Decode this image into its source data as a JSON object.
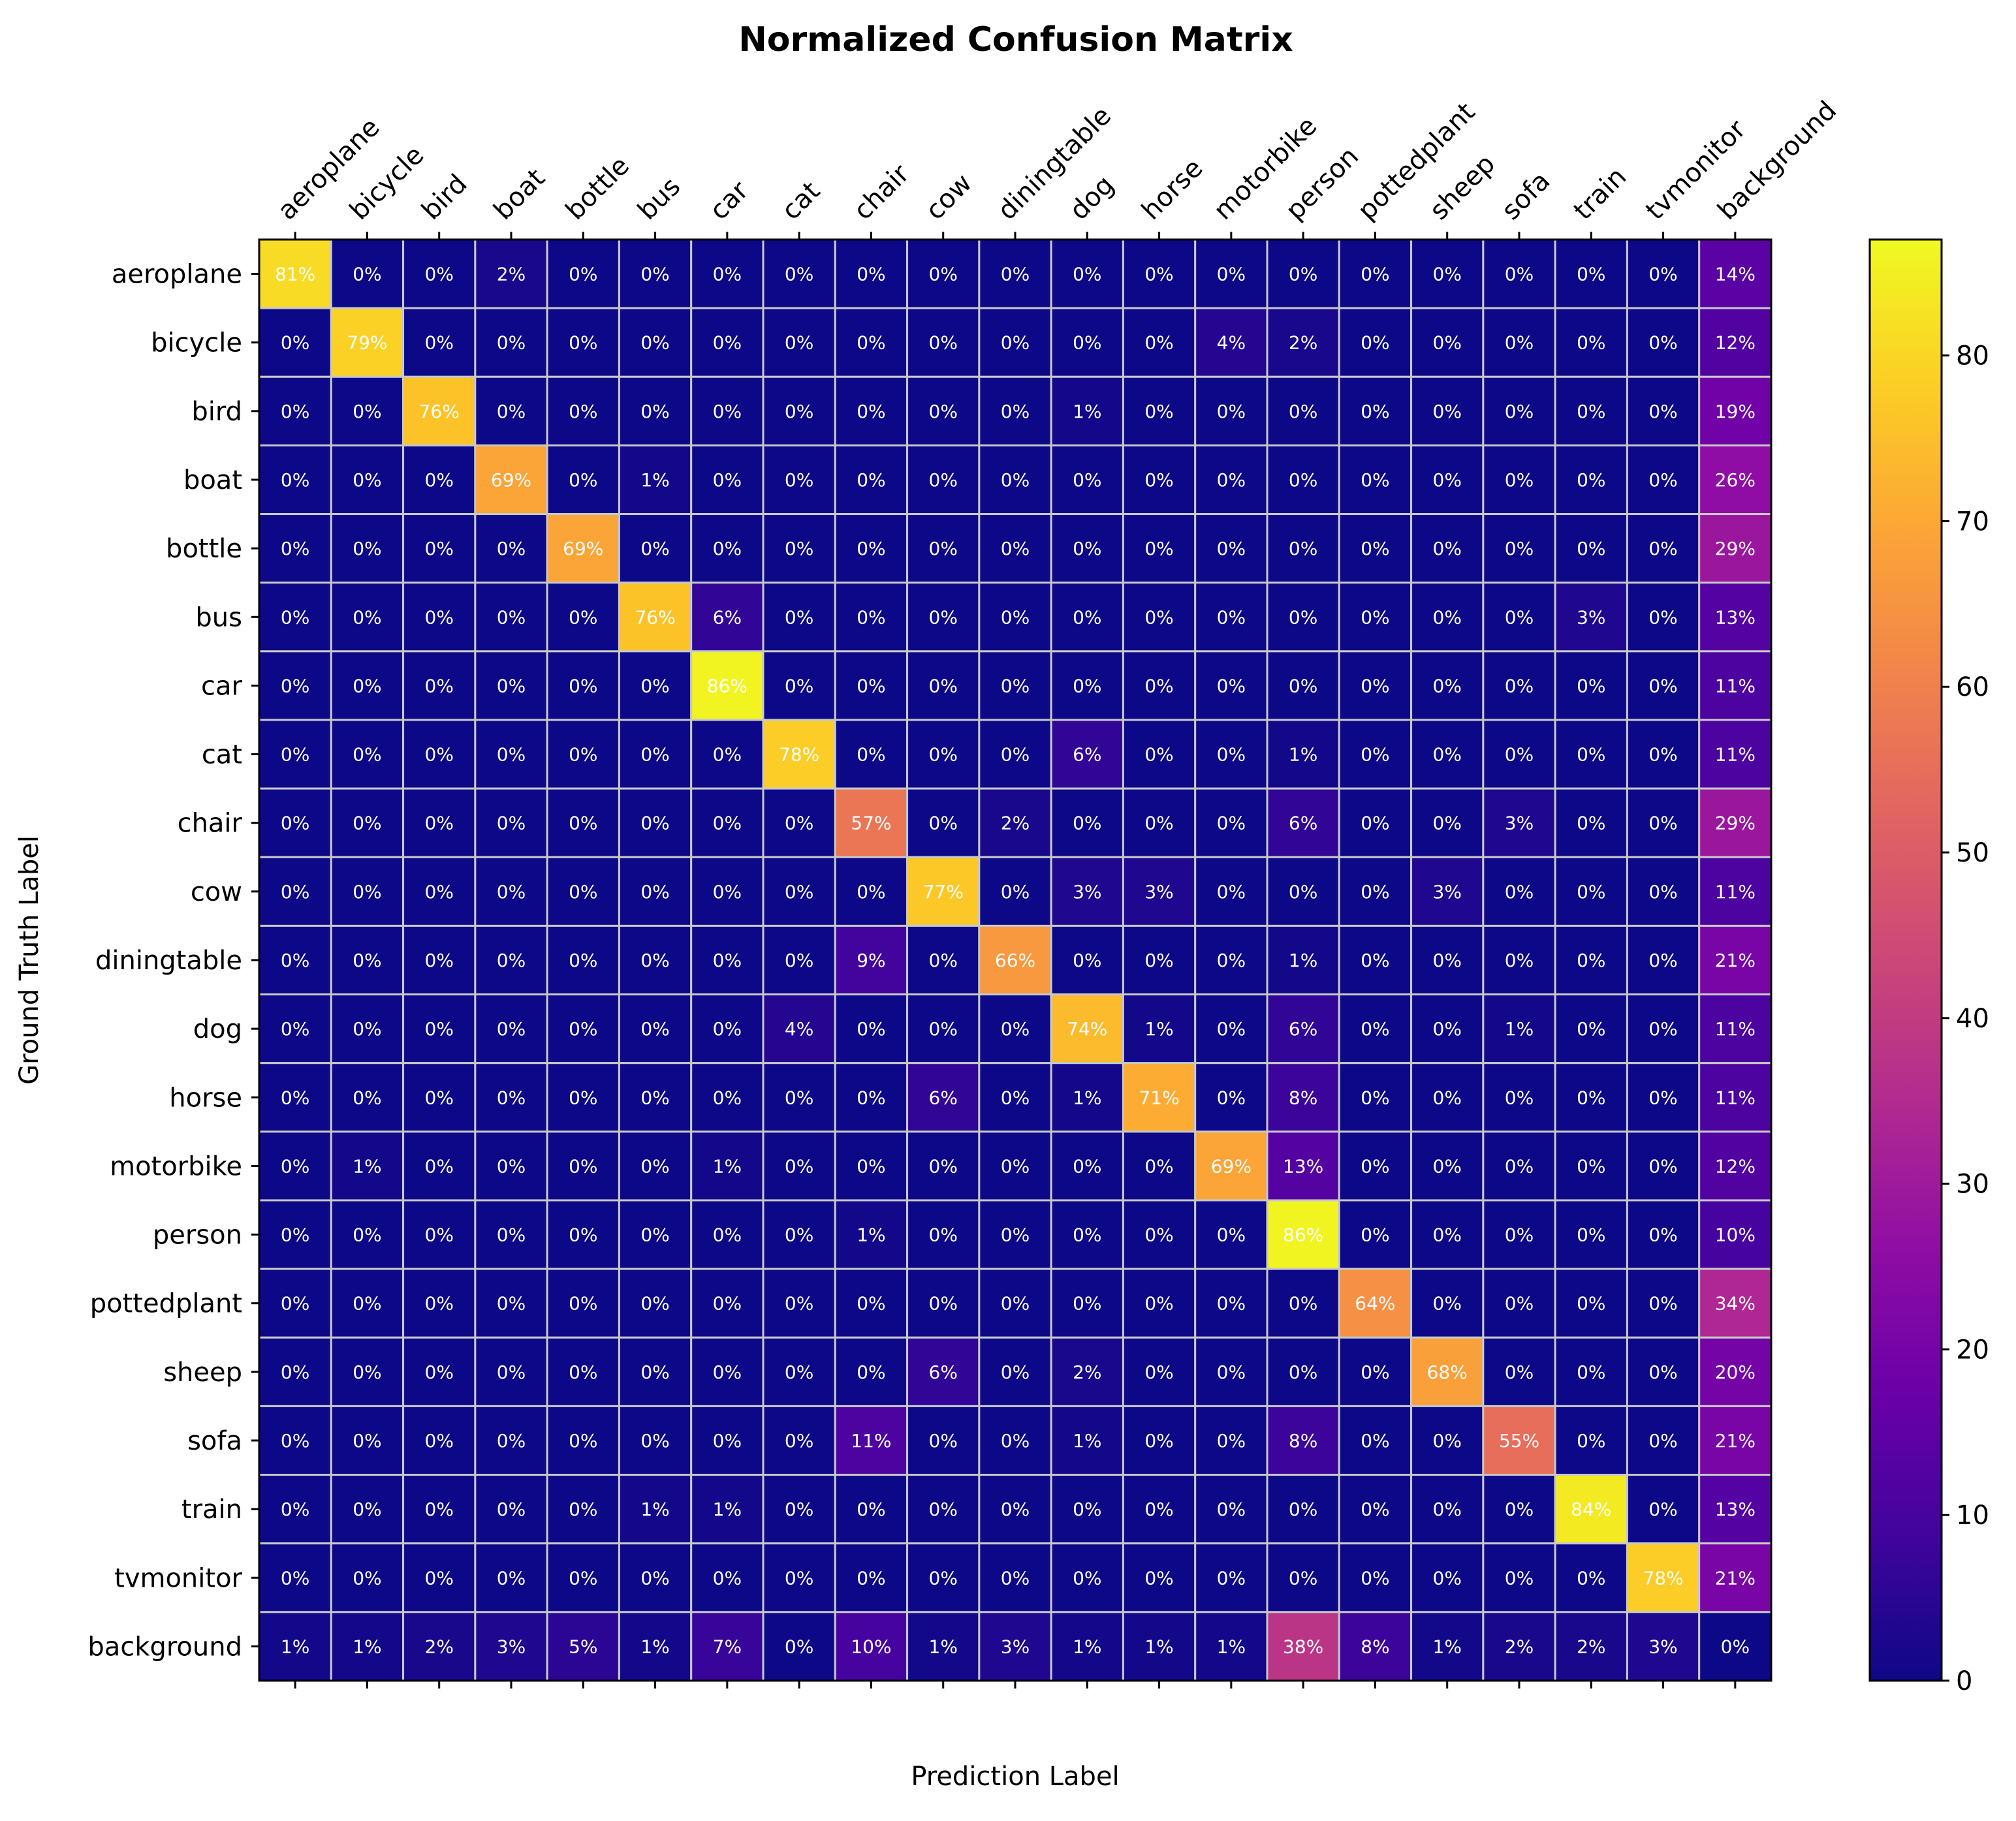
{
  "chart_data": {
    "type": "heatmap",
    "title": "Normalized Confusion Matrix",
    "xlabel": "Prediction Label",
    "ylabel": "Ground Truth Label",
    "x_categories": [
      "aeroplane",
      "bicycle",
      "bird",
      "boat",
      "bottle",
      "bus",
      "car",
      "cat",
      "chair",
      "cow",
      "diningtable",
      "dog",
      "horse",
      "motorbike",
      "person",
      "pottedplant",
      "sheep",
      "sofa",
      "train",
      "tvmonitor",
      "background"
    ],
    "y_categories": [
      "aeroplane",
      "bicycle",
      "bird",
      "boat",
      "bottle",
      "bus",
      "car",
      "cat",
      "chair",
      "cow",
      "diningtable",
      "dog",
      "horse",
      "motorbike",
      "person",
      "pottedplant",
      "sheep",
      "sofa",
      "train",
      "tvmonitor",
      "background"
    ],
    "values": [
      [
        81,
        0,
        0,
        2,
        0,
        0,
        0,
        0,
        0,
        0,
        0,
        0,
        0,
        0,
        0,
        0,
        0,
        0,
        0,
        0,
        14
      ],
      [
        0,
        79,
        0,
        0,
        0,
        0,
        0,
        0,
        0,
        0,
        0,
        0,
        0,
        4,
        2,
        0,
        0,
        0,
        0,
        0,
        12
      ],
      [
        0,
        0,
        76,
        0,
        0,
        0,
        0,
        0,
        0,
        0,
        0,
        1,
        0,
        0,
        0,
        0,
        0,
        0,
        0,
        0,
        19
      ],
      [
        0,
        0,
        0,
        69,
        0,
        1,
        0,
        0,
        0,
        0,
        0,
        0,
        0,
        0,
        0,
        0,
        0,
        0,
        0,
        0,
        26
      ],
      [
        0,
        0,
        0,
        0,
        69,
        0,
        0,
        0,
        0,
        0,
        0,
        0,
        0,
        0,
        0,
        0,
        0,
        0,
        0,
        0,
        29
      ],
      [
        0,
        0,
        0,
        0,
        0,
        76,
        6,
        0,
        0,
        0,
        0,
        0,
        0,
        0,
        0,
        0,
        0,
        0,
        3,
        0,
        13
      ],
      [
        0,
        0,
        0,
        0,
        0,
        0,
        86,
        0,
        0,
        0,
        0,
        0,
        0,
        0,
        0,
        0,
        0,
        0,
        0,
        0,
        11
      ],
      [
        0,
        0,
        0,
        0,
        0,
        0,
        0,
        78,
        0,
        0,
        0,
        6,
        0,
        0,
        1,
        0,
        0,
        0,
        0,
        0,
        11
      ],
      [
        0,
        0,
        0,
        0,
        0,
        0,
        0,
        0,
        57,
        0,
        2,
        0,
        0,
        0,
        6,
        0,
        0,
        3,
        0,
        0,
        29
      ],
      [
        0,
        0,
        0,
        0,
        0,
        0,
        0,
        0,
        0,
        77,
        0,
        3,
        3,
        0,
        0,
        0,
        3,
        0,
        0,
        0,
        11
      ],
      [
        0,
        0,
        0,
        0,
        0,
        0,
        0,
        0,
        9,
        0,
        66,
        0,
        0,
        0,
        1,
        0,
        0,
        0,
        0,
        0,
        21
      ],
      [
        0,
        0,
        0,
        0,
        0,
        0,
        0,
        4,
        0,
        0,
        0,
        74,
        1,
        0,
        6,
        0,
        0,
        1,
        0,
        0,
        11
      ],
      [
        0,
        0,
        0,
        0,
        0,
        0,
        0,
        0,
        0,
        6,
        0,
        1,
        71,
        0,
        8,
        0,
        0,
        0,
        0,
        0,
        11
      ],
      [
        0,
        1,
        0,
        0,
        0,
        0,
        1,
        0,
        0,
        0,
        0,
        0,
        0,
        69,
        13,
        0,
        0,
        0,
        0,
        0,
        12
      ],
      [
        0,
        0,
        0,
        0,
        0,
        0,
        0,
        0,
        1,
        0,
        0,
        0,
        0,
        0,
        86,
        0,
        0,
        0,
        0,
        0,
        10
      ],
      [
        0,
        0,
        0,
        0,
        0,
        0,
        0,
        0,
        0,
        0,
        0,
        0,
        0,
        0,
        0,
        64,
        0,
        0,
        0,
        0,
        34
      ],
      [
        0,
        0,
        0,
        0,
        0,
        0,
        0,
        0,
        0,
        6,
        0,
        2,
        0,
        0,
        0,
        0,
        68,
        0,
        0,
        0,
        20
      ],
      [
        0,
        0,
        0,
        0,
        0,
        0,
        0,
        0,
        11,
        0,
        0,
        1,
        0,
        0,
        8,
        0,
        0,
        55,
        0,
        0,
        21
      ],
      [
        0,
        0,
        0,
        0,
        0,
        1,
        1,
        0,
        0,
        0,
        0,
        0,
        0,
        0,
        0,
        0,
        0,
        0,
        84,
        0,
        13
      ],
      [
        0,
        0,
        0,
        0,
        0,
        0,
        0,
        0,
        0,
        0,
        0,
        0,
        0,
        0,
        0,
        0,
        0,
        0,
        0,
        78,
        21
      ],
      [
        1,
        1,
        2,
        3,
        5,
        1,
        7,
        0,
        10,
        1,
        3,
        1,
        1,
        1,
        38,
        8,
        1,
        2,
        2,
        3,
        0
      ]
    ],
    "value_suffix": "%",
    "colormap": "plasma",
    "colorbar": {
      "min": 0,
      "max": 87,
      "ticks": [
        0,
        10,
        20,
        30,
        40,
        50,
        60,
        70,
        80
      ]
    },
    "grid": true,
    "grid_color": "#c8c8c8",
    "x_tick_position": "top",
    "colorbar_position": "right"
  }
}
